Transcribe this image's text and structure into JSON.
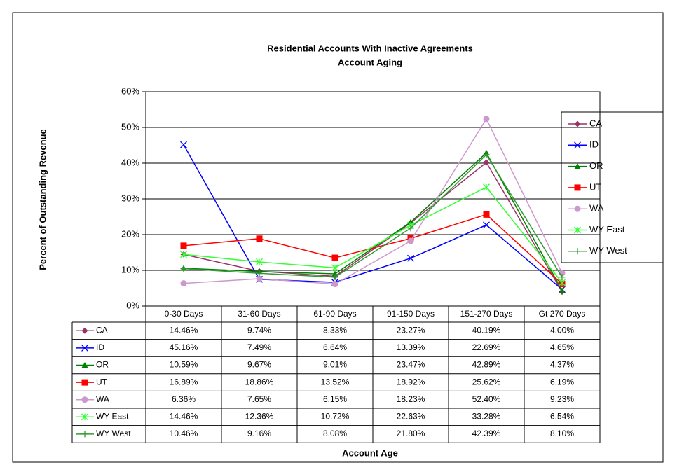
{
  "chart_data": {
    "type": "line",
    "title": [
      "Residential Accounts With Inactive Agreements",
      "Account Aging"
    ],
    "y_label": "Percent of Outstanding Revenue",
    "x_label": "Account Age",
    "categories": [
      "0-30 Days",
      "31-60 Days",
      "61-90 Days",
      "91-150 Days",
      "151-270 Days",
      "Gt 270 Days"
    ],
    "ylim": [
      0,
      60
    ],
    "yticks": [
      {
        "value": 0,
        "label": "0%"
      },
      {
        "value": 10,
        "label": "10%"
      },
      {
        "value": 20,
        "label": "20%"
      },
      {
        "value": 30,
        "label": "30%"
      },
      {
        "value": 40,
        "label": "40%"
      },
      {
        "value": 50,
        "label": "50%"
      },
      {
        "value": 60,
        "label": "60%"
      }
    ],
    "grid": true,
    "legend": "right",
    "series": [
      {
        "name": "CA",
        "color": "#993366",
        "marker": "diamond",
        "values": [
          14.46,
          9.74,
          8.33,
          23.27,
          40.19,
          4.0
        ],
        "value_labels": [
          "14.46%",
          "9.74%",
          "8.33%",
          "23.27%",
          "40.19%",
          "4.00%"
        ]
      },
      {
        "name": "ID",
        "color": "#0000ff",
        "marker": "x",
        "values": [
          45.16,
          7.49,
          6.64,
          13.39,
          22.69,
          4.65
        ],
        "value_labels": [
          "45.16%",
          "7.49%",
          "6.64%",
          "13.39%",
          "22.69%",
          "4.65%"
        ]
      },
      {
        "name": "OR",
        "color": "#008000",
        "marker": "triangle",
        "values": [
          10.59,
          9.67,
          9.01,
          23.47,
          42.89,
          4.37
        ],
        "value_labels": [
          "10.59%",
          "9.67%",
          "9.01%",
          "23.47%",
          "42.89%",
          "4.37%"
        ]
      },
      {
        "name": "UT",
        "color": "#ff0000",
        "marker": "square",
        "values": [
          16.89,
          18.86,
          13.52,
          18.92,
          25.62,
          6.19
        ],
        "value_labels": [
          "16.89%",
          "18.86%",
          "13.52%",
          "18.92%",
          "25.62%",
          "6.19%"
        ]
      },
      {
        "name": "WA",
        "color": "#cc99cc",
        "marker": "circle",
        "values": [
          6.36,
          7.65,
          6.15,
          18.23,
          52.4,
          9.23
        ],
        "value_labels": [
          "6.36%",
          "7.65%",
          "6.15%",
          "18.23%",
          "52.40%",
          "9.23%"
        ]
      },
      {
        "name": "WY East",
        "color": "#33ff33",
        "marker": "star",
        "values": [
          14.46,
          12.36,
          10.72,
          22.63,
          33.28,
          6.54
        ],
        "value_labels": [
          "14.46%",
          "12.36%",
          "10.72%",
          "22.63%",
          "33.28%",
          "6.54%"
        ]
      },
      {
        "name": "WY West",
        "color": "#339933",
        "marker": "plus",
        "values": [
          10.46,
          9.16,
          8.08,
          21.8,
          42.39,
          8.1
        ],
        "value_labels": [
          "10.46%",
          "9.16%",
          "8.08%",
          "21.80%",
          "42.39%",
          "8.10%"
        ]
      }
    ]
  }
}
